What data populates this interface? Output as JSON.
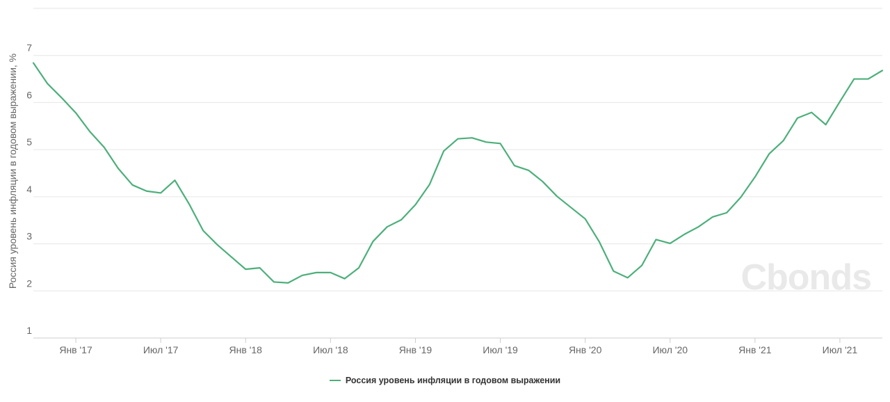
{
  "watermark": "Cbonds",
  "chart_data": {
    "type": "line",
    "ylabel": "Россия уровень инфляции в годовом выражении, %",
    "y_ticks": [
      1,
      2,
      3,
      4,
      5,
      6,
      7
    ],
    "ylim": [
      1,
      8
    ],
    "x_tick_labels": [
      {
        "label": "Янв '17",
        "month_index": 3
      },
      {
        "label": "Июл '17",
        "month_index": 9
      },
      {
        "label": "Янв '18",
        "month_index": 15
      },
      {
        "label": "Июл '18",
        "month_index": 21
      },
      {
        "label": "Янв '19",
        "month_index": 27
      },
      {
        "label": "Июл '19",
        "month_index": 33
      },
      {
        "label": "Янв '20",
        "month_index": 39
      },
      {
        "label": "Июл '20",
        "month_index": 45
      },
      {
        "label": "Янв '21",
        "month_index": 51
      },
      {
        "label": "Июл '21",
        "month_index": 57
      }
    ],
    "x_start": "2016-10",
    "grid": true,
    "legend_position": "bottom-center",
    "color": "#4caf7a",
    "series": [
      {
        "name": "Россия уровень инфляции в годовом выражении",
        "values": [
          6.84,
          6.4,
          6.1,
          5.78,
          5.38,
          5.05,
          4.6,
          4.25,
          4.12,
          4.08,
          4.35,
          3.85,
          3.28,
          2.98,
          2.72,
          2.46,
          2.49,
          2.19,
          2.17,
          2.33,
          2.39,
          2.39,
          2.26,
          2.49,
          3.05,
          3.36,
          3.51,
          3.83,
          4.26,
          4.97,
          5.23,
          5.25,
          5.16,
          5.13,
          4.66,
          4.56,
          4.32,
          4.01,
          3.77,
          3.53,
          3.04,
          2.42,
          2.28,
          2.54,
          3.09,
          3.01,
          3.2,
          3.36,
          3.57,
          3.66,
          3.99,
          4.42,
          4.91,
          5.19,
          5.67,
          5.79,
          5.53,
          6.02,
          6.5,
          6.5,
          6.68
        ]
      }
    ]
  }
}
